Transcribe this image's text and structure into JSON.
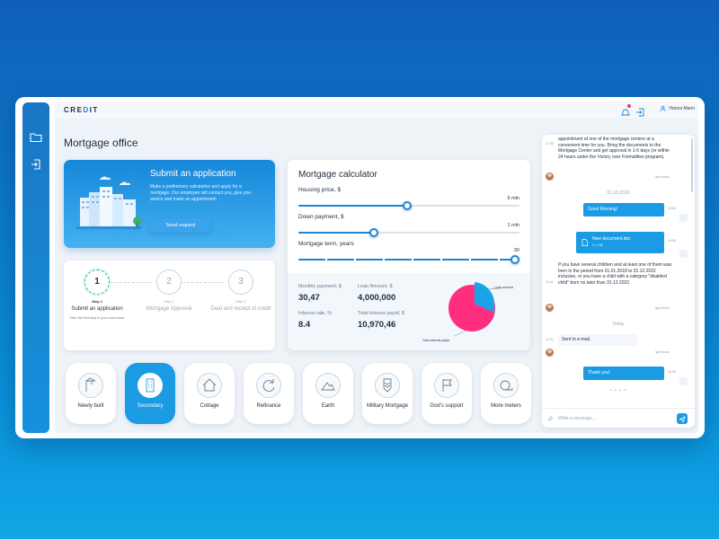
{
  "app": {
    "logo": "CREDIT",
    "user_name": "Hanna Marin",
    "page_title": "Mortgage office"
  },
  "submit": {
    "title": "Submit an application",
    "text": "Make a preliminary calculation and apply for a mortgage. Our employee will contact you, give you advice and make an appointment",
    "button": "Send request"
  },
  "steps": [
    {
      "number": "1",
      "tag": "Step 1",
      "label": "Submit an application",
      "hint": "Take the first step to your own home"
    },
    {
      "number": "2",
      "tag": "Step 2",
      "label": "Mortgage Approval",
      "hint": ""
    },
    {
      "number": "3",
      "tag": "Step 3",
      "label": "Deal and receipt of credit",
      "hint": ""
    }
  ],
  "calculator": {
    "title": "Mortgage calculator",
    "housing": {
      "label": "Housing price, $",
      "value": "5 mln",
      "fraction": 0.49
    },
    "down": {
      "label": "Down payment, $",
      "value": "1 mln",
      "fraction": 0.34
    },
    "term": {
      "label": "Mortgage term, years",
      "value": "30",
      "fraction": 1.0
    },
    "monthly": {
      "label": "Monthly payment, $",
      "value": "30,47"
    },
    "loan": {
      "label": "Loan Amount, $",
      "value": "4,000,000"
    },
    "rate": {
      "label": "Interest rate, %",
      "value": "8.4"
    },
    "interest": {
      "label": "Total interest payid, $",
      "value": "10,970,46"
    },
    "pie_labels": {
      "loan": "Loan amount",
      "interest": "Total interest payid"
    },
    "colors": {
      "loan": "#1aa3e8",
      "interest": "#ff2e7e"
    }
  },
  "categories": [
    {
      "label": "Newly built",
      "icon": "crane-icon"
    },
    {
      "label": "Secondary",
      "icon": "building-icon"
    },
    {
      "label": "Cottage",
      "icon": "house-icon"
    },
    {
      "label": "Refinance",
      "icon": "refresh-icon"
    },
    {
      "label": "Earth",
      "icon": "field-icon"
    },
    {
      "label": "Military Mortgage",
      "icon": "badge-icon"
    },
    {
      "label": "God's support",
      "icon": "flag-icon"
    },
    {
      "label": "More meters",
      "icon": "tape-icon"
    }
  ],
  "chat": {
    "msg1_time": "17:30",
    "msg1": "appointment at one of the mortgage centers at a convenient time for you. Bring the documents to the Mortgage Center and get approval in 1-5 days (or within 24 hours under the Victory over Formalities program).",
    "sender": "Igor Krutoi",
    "date1": "01.10.2020",
    "out1": "Good Morning!",
    "out1_time": "10:50",
    "out2": "New document.doc",
    "out2_size": "0.1 MB",
    "out2_time": "10:50",
    "msg2_time": "11:01",
    "msg2": "If you have several children and at least one of them was born in the period from 01.01.2018 to 31.12.2022 inclusive, or you have a child with a category \"disabled child\" born no later than 31.12.2022.",
    "date2": "Today",
    "msg3_time": "11:01",
    "msg3": "Sent to e-mail.",
    "out3": "Thank you!",
    "out3_time": "10:50",
    "placeholder": "Write a message..."
  }
}
